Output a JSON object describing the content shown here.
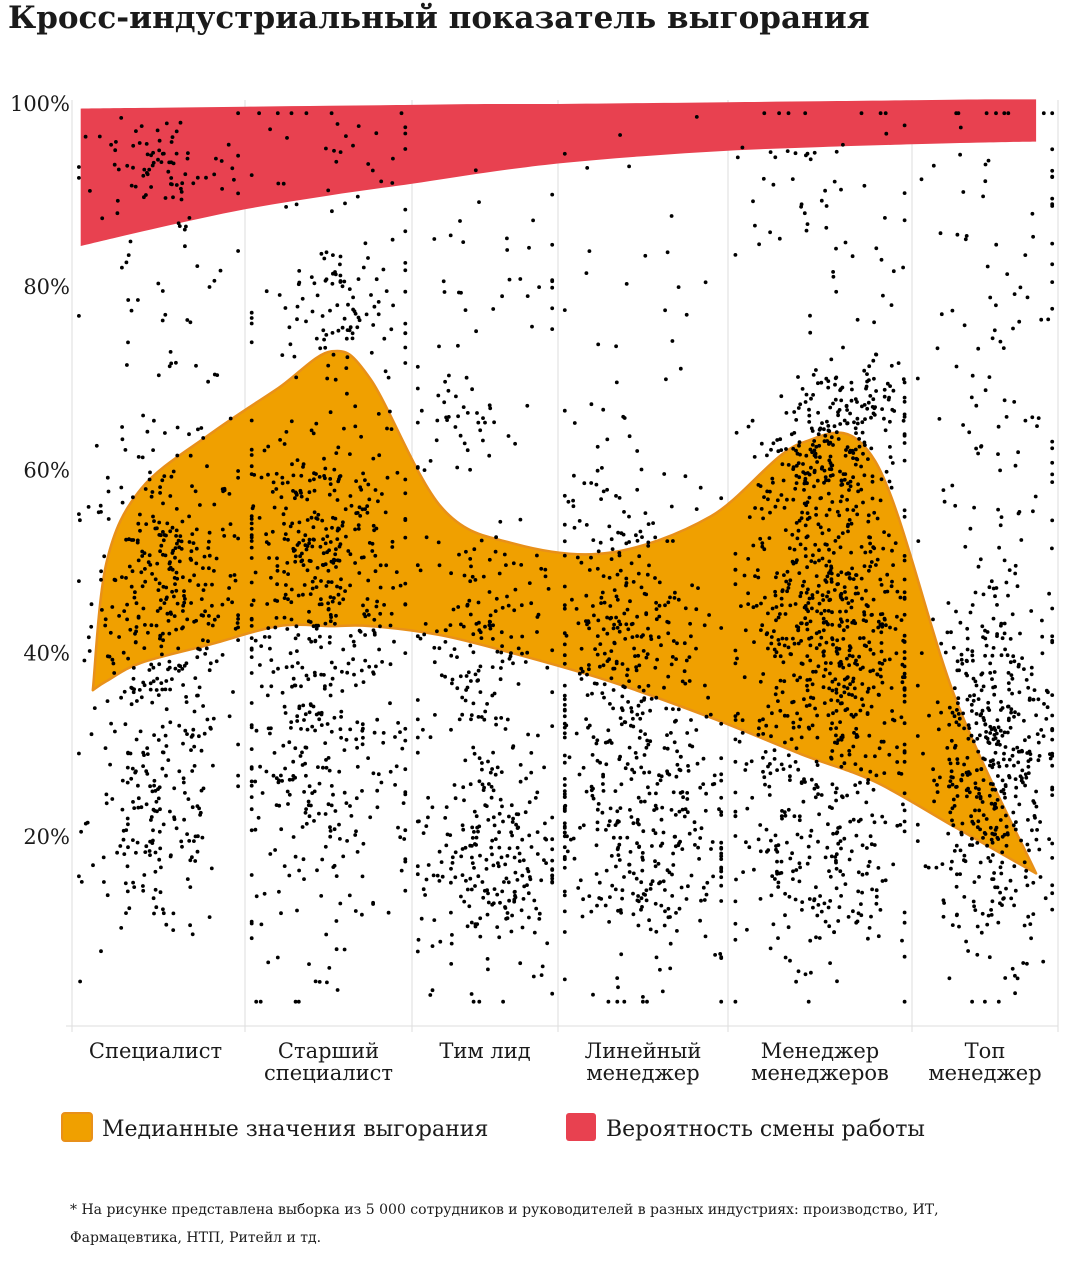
{
  "title": "Кросс-индустриальный показатель выгорания",
  "footnote": "* На рисунке представлена выборка из 5 000 сотрудников и руководителей в разных индустриях: производство, ИТ, Фармацевтика, НТП, Ритейл и тд.",
  "chart_data": {
    "type": "scatter",
    "title": "Кросс-индустриальный показатель выгорания",
    "xlabel": "",
    "ylabel": "",
    "ylim": [
      0,
      100
    ],
    "y_ticks": [
      "20%",
      "40%",
      "60%",
      "80%",
      "100%"
    ],
    "y_tick_values": [
      20,
      40,
      60,
      80,
      100
    ],
    "grid": "vertical separators between categories",
    "legend_position": "bottom",
    "categories": [
      [
        "Специалист"
      ],
      [
        "Старший",
        "специалист"
      ],
      [
        "Тим лид"
      ],
      [
        "Линейный",
        "менеджер"
      ],
      [
        "Менеджер",
        "менеджеров"
      ],
      [
        "Топ",
        "менеджер"
      ]
    ],
    "category_bounds": [
      0,
      1,
      2,
      3,
      4,
      5,
      6
    ],
    "legend": [
      {
        "label": "Медианные значения выгорания",
        "color": "#f0a000"
      },
      {
        "label": "Вероятность смены работы",
        "color": "#e84150"
      }
    ],
    "colors": {
      "burnout_fill": "#f0a000",
      "burnout_stroke": "#e8901a",
      "job_change": "#e84150",
      "points": "#000000",
      "grid": "#dddddd"
    },
    "series": [
      {
        "name": "Медианные значения выгорания",
        "kind": "band",
        "x": [
          0.12,
          0.2,
          0.4,
          0.8,
          1.2,
          1.52,
          1.75,
          2.2,
          2.7,
          3.3,
          3.9,
          4.4,
          4.8,
          5.3,
          5.85
        ],
        "upper": [
          36,
          50,
          58,
          64,
          69,
          73,
          70,
          56,
          52,
          51,
          55,
          63,
          61,
          35,
          16
        ],
        "lower": [
          36,
          37,
          39,
          41,
          43,
          43,
          43,
          42,
          40,
          37,
          33,
          29,
          26,
          21,
          16
        ]
      },
      {
        "name": "Вероятность смены работы",
        "kind": "band",
        "x": [
          0.05,
          0.5,
          1.0,
          1.5,
          2.0,
          2.5,
          3.0,
          3.5,
          4.0,
          4.5,
          5.0,
          5.5,
          5.85
        ],
        "upper": [
          99.5,
          99.6,
          99.7,
          99.8,
          99.9,
          100,
          100,
          100.1,
          100.2,
          100.3,
          100.4,
          100.5,
          100.5
        ],
        "lower": [
          84.5,
          86.5,
          88.5,
          90,
          91.3,
          92.5,
          93.5,
          94.3,
          94.9,
          95.3,
          95.6,
          95.8,
          95.9
        ]
      }
    ],
    "scatter_clusters": [
      {
        "category": 0,
        "cx": 0.55,
        "cy": 46,
        "sx": 0.22,
        "sy": 8,
        "n": 330
      },
      {
        "category": 0,
        "cx": 0.5,
        "cy": 22,
        "sx": 0.2,
        "sy": 7,
        "n": 170
      },
      {
        "category": 0,
        "cx": 0.5,
        "cy": 76,
        "sx": 0.25,
        "sy": 10,
        "n": 60
      },
      {
        "category": 0,
        "cx": 0.5,
        "cy": 93,
        "sx": 0.25,
        "sy": 3,
        "n": 70
      },
      {
        "category": 1,
        "cx": 0.45,
        "cy": 52,
        "sx": 0.25,
        "sy": 7,
        "n": 320
      },
      {
        "category": 1,
        "cx": 0.45,
        "cy": 28,
        "sx": 0.28,
        "sy": 10,
        "n": 300
      },
      {
        "category": 1,
        "cx": 0.6,
        "cy": 77,
        "sx": 0.25,
        "sy": 5,
        "n": 110
      },
      {
        "category": 1,
        "cx": 0.5,
        "cy": 95,
        "sx": 0.28,
        "sy": 3,
        "n": 30
      },
      {
        "category": 2,
        "cx": 0.45,
        "cy": 42,
        "sx": 0.22,
        "sy": 6,
        "n": 150
      },
      {
        "category": 2,
        "cx": 0.55,
        "cy": 18,
        "sx": 0.25,
        "sy": 7,
        "n": 250
      },
      {
        "category": 2,
        "cx": 0.35,
        "cy": 65,
        "sx": 0.2,
        "sy": 3,
        "n": 40
      },
      {
        "category": 2,
        "cx": 0.6,
        "cy": 82,
        "sx": 0.3,
        "sy": 8,
        "n": 35
      },
      {
        "category": 3,
        "cx": 0.4,
        "cy": 43,
        "sx": 0.22,
        "sy": 6,
        "n": 200
      },
      {
        "category": 3,
        "cx": 0.45,
        "cy": 22,
        "sx": 0.3,
        "sy": 9,
        "n": 380
      },
      {
        "category": 3,
        "cx": 0.4,
        "cy": 58,
        "sx": 0.25,
        "sy": 4,
        "n": 40
      },
      {
        "category": 3,
        "cx": 0.5,
        "cy": 82,
        "sx": 0.3,
        "sy": 9,
        "n": 25
      },
      {
        "category": 4,
        "cx": 0.55,
        "cy": 42,
        "sx": 0.25,
        "sy": 10,
        "n": 650
      },
      {
        "category": 4,
        "cx": 0.5,
        "cy": 17,
        "sx": 0.25,
        "sy": 7,
        "n": 200
      },
      {
        "category": 4,
        "cx": 0.45,
        "cy": 60,
        "sx": 0.15,
        "sy": 4,
        "n": 120
      },
      {
        "category": 4,
        "cx": 0.7,
        "cy": 66,
        "sx": 0.15,
        "sy": 3,
        "n": 120
      },
      {
        "category": 4,
        "cx": 0.55,
        "cy": 90,
        "sx": 0.3,
        "sy": 6,
        "n": 60
      },
      {
        "category": 5,
        "cx": 0.55,
        "cy": 28,
        "sx": 0.22,
        "sy": 10,
        "n": 480
      },
      {
        "category": 5,
        "cx": 0.6,
        "cy": 65,
        "sx": 0.3,
        "sy": 20,
        "n": 130
      }
    ]
  }
}
